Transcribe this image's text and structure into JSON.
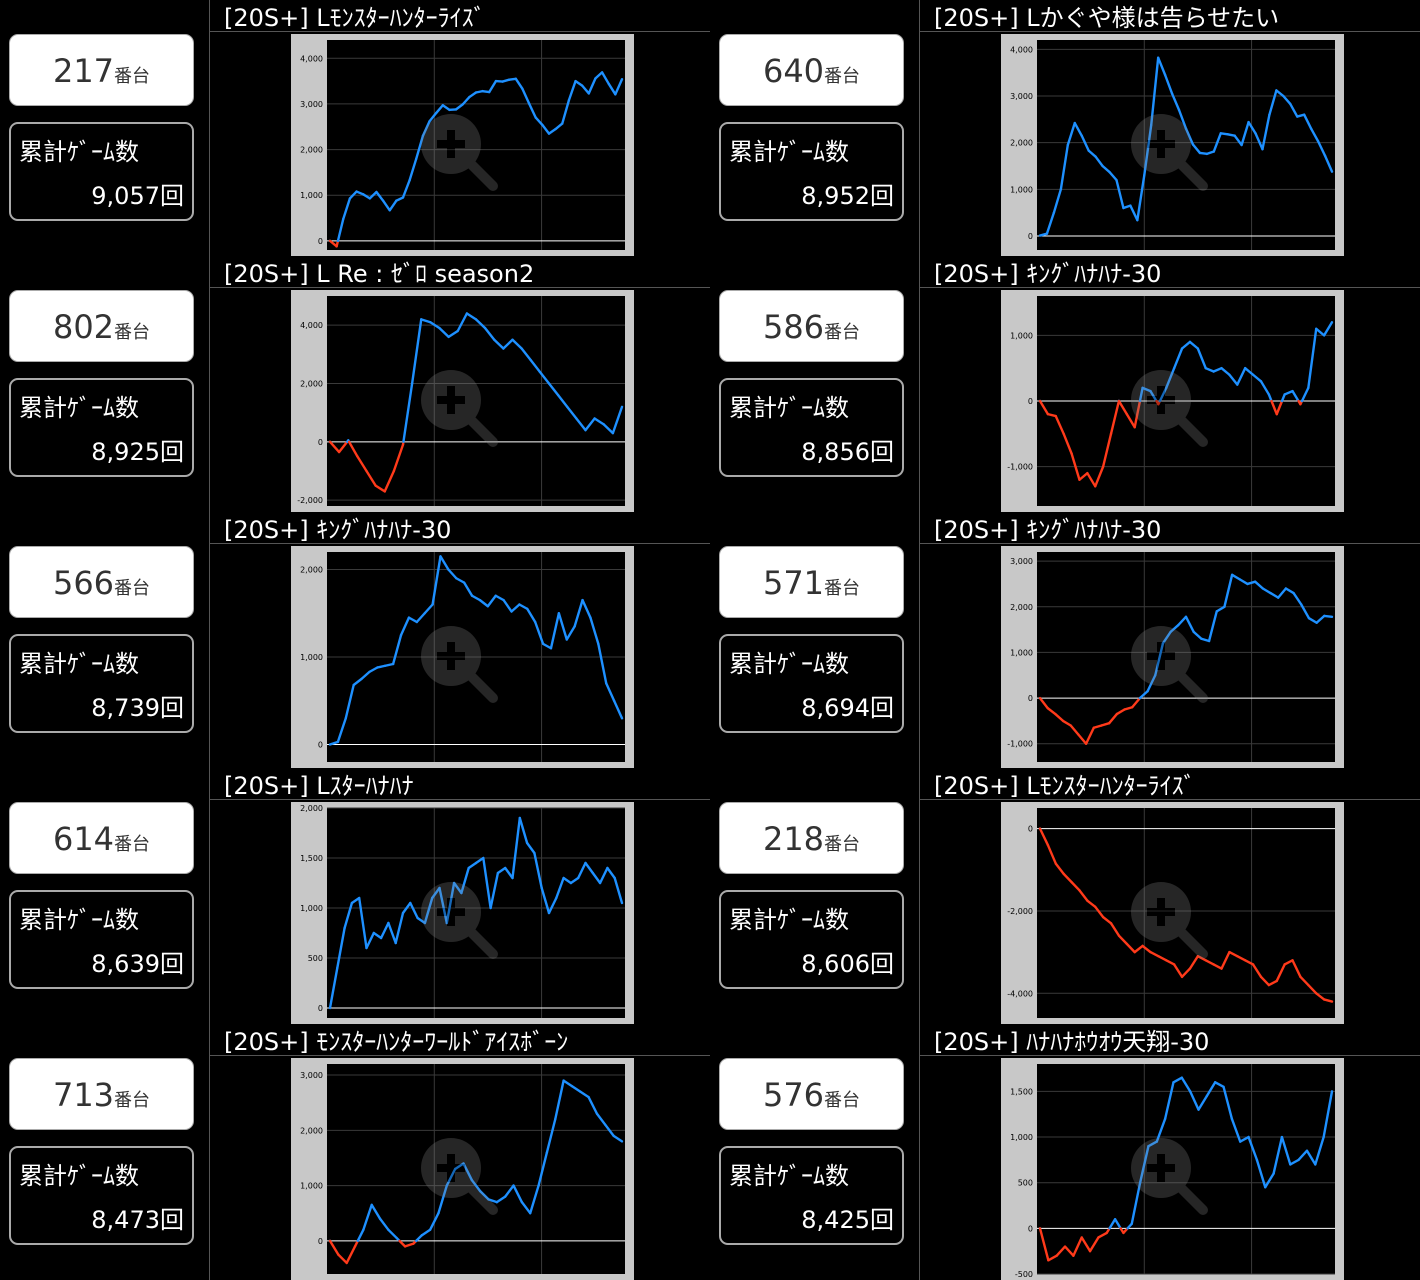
{
  "entries": [
    {
      "machine_no": "217",
      "machine_suffix": "番台",
      "games_label": "累計ｹﾞｰﾑ数",
      "games_value": "9,057回",
      "title": "[20S+] Lﾓﾝｽﾀｰﾊﾝﾀｰﾗｲｽﾞ",
      "chart": {
        "type": "line",
        "ylim": [
          -200,
          4400
        ],
        "yticks": [
          0,
          1000,
          2000,
          3000,
          4000
        ],
        "ytick_labels": [
          "0",
          "1,000",
          "2,000",
          "3,000",
          "4,000"
        ],
        "values": [
          0,
          -120,
          480,
          930,
          1080,
          1020,
          930,
          1070,
          880,
          670,
          880,
          950,
          1330,
          1800,
          2300,
          2620,
          2800,
          2970,
          2870,
          2880,
          2990,
          3150,
          3250,
          3280,
          3260,
          3500,
          3490,
          3530,
          3550,
          3330,
          3010,
          2700,
          2540,
          2350,
          2450,
          2570,
          3080,
          3500,
          3400,
          3230,
          3560,
          3690,
          3440,
          3210,
          3540
        ]
      }
    },
    {
      "machine_no": "640",
      "machine_suffix": "番台",
      "games_label": "累計ｹﾞｰﾑ数",
      "games_value": "8,952回",
      "title": "[20S+] Lかぐや様は告らせたい",
      "chart": {
        "type": "line",
        "ylim": [
          -300,
          4200
        ],
        "yticks": [
          0,
          1000,
          2000,
          3000,
          4000
        ],
        "ytick_labels": [
          "0",
          "1,000",
          "2,000",
          "3,000",
          "4,000"
        ],
        "values": [
          10,
          50,
          500,
          1000,
          1950,
          2420,
          2150,
          1830,
          1700,
          1500,
          1370,
          1200,
          600,
          650,
          340,
          1300,
          2380,
          3820,
          3450,
          3050,
          2700,
          2300,
          1960,
          1780,
          1760,
          1810,
          2200,
          2180,
          2150,
          1950,
          2440,
          2200,
          1860,
          2600,
          3120,
          3000,
          2830,
          2560,
          2600,
          2300,
          2030,
          1720,
          1380
        ]
      }
    },
    {
      "machine_no": "802",
      "machine_suffix": "番台",
      "games_label": "累計ｹﾞｰﾑ数",
      "games_value": "8,925回",
      "title": "[20S+] L Re : ｾﾞﾛ season2",
      "chart": {
        "type": "line",
        "ylim": [
          -2200,
          5000
        ],
        "yticks": [
          -2000,
          0,
          2000,
          4000
        ],
        "ytick_labels": [
          "-2,000",
          "0",
          "2,000",
          "4,000"
        ],
        "values": [
          0,
          -350,
          50,
          -500,
          -1000,
          -1500,
          -1700,
          -1000,
          -100,
          2000,
          4200,
          4100,
          3900,
          3600,
          3800,
          4400,
          4200,
          3900,
          3500,
          3200,
          3500,
          3200,
          2800,
          2400,
          2000,
          1600,
          1200,
          800,
          400,
          800,
          600,
          300,
          1200
        ]
      }
    },
    {
      "machine_no": "586",
      "machine_suffix": "番台",
      "games_label": "累計ｹﾞｰﾑ数",
      "games_value": "8,856回",
      "title": "[20S+] ｷﾝｸﾞﾊﾅﾊﾅ-30",
      "chart": {
        "type": "line",
        "ylim": [
          -1600,
          1600
        ],
        "yticks": [
          -1000,
          0,
          1000
        ],
        "ytick_labels": [
          "-1,000",
          "0",
          "1,000"
        ],
        "values": [
          0,
          -200,
          -230,
          -500,
          -800,
          -1200,
          -1100,
          -1300,
          -1000,
          -500,
          0,
          -200,
          -400,
          200,
          150,
          -50,
          200,
          500,
          800,
          900,
          800,
          500,
          450,
          500,
          400,
          250,
          500,
          400,
          300,
          100,
          -200,
          100,
          150,
          -50,
          200,
          1100,
          1000,
          1200
        ]
      }
    },
    {
      "machine_no": "566",
      "machine_suffix": "番台",
      "games_label": "累計ｹﾞｰﾑ数",
      "games_value": "8,739回",
      "title": "[20S+] ｷﾝｸﾞﾊﾅﾊﾅ-30",
      "chart": {
        "type": "line",
        "ylim": [
          -200,
          2200
        ],
        "yticks": [
          0,
          1000,
          2000
        ],
        "ytick_labels": [
          "0",
          "1,000",
          "2,000"
        ],
        "values": [
          0,
          30,
          300,
          680,
          750,
          830,
          880,
          900,
          920,
          1250,
          1450,
          1400,
          1500,
          1600,
          2150,
          2000,
          1900,
          1850,
          1700,
          1650,
          1580,
          1700,
          1650,
          1520,
          1600,
          1550,
          1400,
          1150,
          1100,
          1500,
          1200,
          1350,
          1650,
          1450,
          1150,
          700,
          500,
          300
        ]
      }
    },
    {
      "machine_no": "571",
      "machine_suffix": "番台",
      "games_label": "累計ｹﾞｰﾑ数",
      "games_value": "8,694回",
      "title": "[20S+] ｷﾝｸﾞﾊﾅﾊﾅ-30",
      "chart": {
        "type": "line",
        "ylim": [
          -1400,
          3200
        ],
        "yticks": [
          -1000,
          0,
          1000,
          2000,
          3000
        ],
        "ytick_labels": [
          "-1,000",
          "0",
          "1,000",
          "2,000",
          "3,000"
        ],
        "values": [
          0,
          -220,
          -350,
          -500,
          -600,
          -800,
          -1000,
          -650,
          -600,
          -550,
          -350,
          -250,
          -200,
          0,
          150,
          500,
          1200,
          1450,
          1600,
          1780,
          1450,
          1300,
          1250,
          1900,
          2000,
          2700,
          2600,
          2500,
          2550,
          2400,
          2300,
          2200,
          2400,
          2300,
          2050,
          1750,
          1650,
          1800,
          1780
        ]
      }
    },
    {
      "machine_no": "614",
      "machine_suffix": "番台",
      "games_label": "累計ｹﾞｰﾑ数",
      "games_value": "8,639回",
      "title": "[20S+] Lｽﾀｰﾊﾅﾊﾅ",
      "chart": {
        "type": "line",
        "ylim": [
          -100,
          2000
        ],
        "yticks": [
          0,
          500,
          1000,
          1500,
          2000
        ],
        "ytick_labels": [
          "0",
          "500",
          "1,000",
          "1,500",
          "2,000"
        ],
        "values": [
          0,
          400,
          800,
          1050,
          1100,
          600,
          750,
          700,
          850,
          650,
          950,
          1050,
          900,
          850,
          1100,
          1200,
          850,
          1250,
          1150,
          1400,
          1450,
          1500,
          1000,
          1350,
          1400,
          1300,
          1900,
          1650,
          1550,
          1200,
          950,
          1100,
          1300,
          1250,
          1300,
          1450,
          1350,
          1250,
          1400,
          1300,
          1050
        ]
      }
    },
    {
      "machine_no": "218",
      "machine_suffix": "番台",
      "games_label": "累計ｹﾞｰﾑ数",
      "games_value": "8,606回",
      "title": "[20S+] Lﾓﾝｽﾀｰﾊﾝﾀｰﾗｲｽﾞ",
      "chart": {
        "type": "line",
        "ylim": [
          -4600,
          500
        ],
        "yticks": [
          -4000,
          -2000,
          0
        ],
        "ytick_labels": [
          "-4,000",
          "-2,000",
          "0"
        ],
        "values": [
          0,
          -400,
          -850,
          -1100,
          -1300,
          -1500,
          -1750,
          -1900,
          -2150,
          -2300,
          -2600,
          -2800,
          -3000,
          -2850,
          -3000,
          -3100,
          -3200,
          -3300,
          -3600,
          -3400,
          -3100,
          -3200,
          -3300,
          -3400,
          -3000,
          -3100,
          -3200,
          -3300,
          -3600,
          -3800,
          -3700,
          -3300,
          -3200,
          -3600,
          -3800,
          -4000,
          -4150,
          -4200
        ]
      }
    },
    {
      "machine_no": "713",
      "machine_suffix": "番台",
      "games_label": "累計ｹﾞｰﾑ数",
      "games_value": "8,473回",
      "title": "[20S+] ﾓﾝｽﾀｰﾊﾝﾀｰﾜｰﾙﾄﾞｱｲｽﾎﾞｰﾝ",
      "chart": {
        "type": "line",
        "ylim": [
          -600,
          3200
        ],
        "yticks": [
          0,
          1000,
          2000,
          3000
        ],
        "ytick_labels": [
          "0",
          "1,000",
          "2,000",
          "3,000"
        ],
        "values": [
          0,
          -250,
          -400,
          -100,
          200,
          650,
          400,
          200,
          50,
          -100,
          -50,
          100,
          200,
          500,
          1000,
          1300,
          1400,
          1100,
          900,
          750,
          700,
          800,
          1000,
          700,
          500,
          1000,
          1600,
          2200,
          2900,
          2800,
          2700,
          2600,
          2300,
          2100,
          1900,
          1800
        ]
      }
    },
    {
      "machine_no": "576",
      "machine_suffix": "番台",
      "games_label": "累計ｹﾞｰﾑ数",
      "games_value": "8,425回",
      "title": "[20S+] ﾊﾅﾊﾅﾎｳｵｳ天翔-30",
      "chart": {
        "type": "line",
        "ylim": [
          -500,
          1800
        ],
        "yticks": [
          -500,
          0,
          500,
          1000,
          1500
        ],
        "ytick_labels": [
          "-500",
          "0",
          "500",
          "1,000",
          "1,500"
        ],
        "values": [
          0,
          -350,
          -300,
          -200,
          -300,
          -100,
          -250,
          -100,
          -50,
          100,
          -50,
          50,
          500,
          900,
          950,
          1200,
          1600,
          1650,
          1500,
          1300,
          1450,
          1600,
          1550,
          1200,
          950,
          1000,
          750,
          450,
          600,
          1000,
          700,
          750,
          850,
          700,
          1000,
          1500
        ]
      }
    }
  ],
  "colors": {
    "positive": "#1e90ff",
    "negative": "#ff3a1a",
    "frame": "#c8c8c8",
    "plot_bg": "#000000",
    "grid": "#3a3a3a",
    "zero_line": "#ffffff"
  }
}
